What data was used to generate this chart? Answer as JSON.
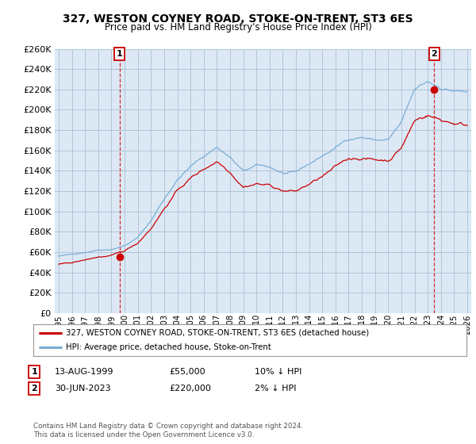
{
  "title": "327, WESTON COYNEY ROAD, STOKE-ON-TRENT, ST3 6ES",
  "subtitle": "Price paid vs. HM Land Registry's House Price Index (HPI)",
  "legend_line1": "327, WESTON COYNEY ROAD, STOKE-ON-TRENT, ST3 6ES (detached house)",
  "legend_line2": "HPI: Average price, detached house, Stoke-on-Trent",
  "annotation1_label": "1",
  "annotation1_date": "13-AUG-1999",
  "annotation1_price": "£55,000",
  "annotation1_hpi": "10% ↓ HPI",
  "annotation2_label": "2",
  "annotation2_date": "30-JUN-2023",
  "annotation2_price": "£220,000",
  "annotation2_hpi": "2% ↓ HPI",
  "footer": "Contains HM Land Registry data © Crown copyright and database right 2024.\nThis data is licensed under the Open Government Licence v3.0.",
  "point1_x": 1999.62,
  "point1_y": 55000,
  "point2_x": 2023.5,
  "point2_y": 220000,
  "ylim": [
    0,
    260000
  ],
  "yticks": [
    0,
    20000,
    40000,
    60000,
    80000,
    100000,
    120000,
    140000,
    160000,
    180000,
    200000,
    220000,
    240000,
    260000
  ],
  "xlim": [
    1994.7,
    2026.3
  ],
  "line_color_property": "#cc0000",
  "line_color_hpi": "#7aadd4",
  "chart_bg_color": "#dce9f5",
  "background_color": "#ffffff",
  "grid_color": "#b0c4d8",
  "seed": 42
}
